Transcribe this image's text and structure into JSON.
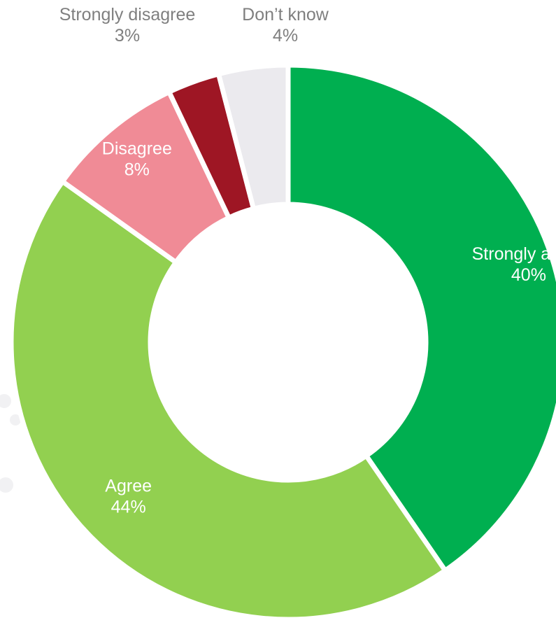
{
  "chart_data": {
    "type": "donut",
    "title": "",
    "slices": [
      {
        "label": "Strongly agree",
        "value": 40,
        "value_text": "40%",
        "color": "#00AF50",
        "label_color": "#ffffff"
      },
      {
        "label": "Agree",
        "value": 44,
        "value_text": "44%",
        "color": "#92D050",
        "label_color": "#ffffff"
      },
      {
        "label": "Disagree",
        "value": 8,
        "value_text": "8%",
        "color": "#F08B96",
        "label_color": "#ffffff"
      },
      {
        "label": "Strongly disagree",
        "value": 3,
        "value_text": "3%",
        "color": "#9E1624",
        "label_color": "#7f7f7f"
      },
      {
        "label": "Don’t know",
        "value": 4,
        "value_text": "4%",
        "color": "#EBEAEE",
        "label_color": "#7f7f7f"
      }
    ],
    "start_angle_deg": 0,
    "direction": "clockwise",
    "legend": "none"
  }
}
